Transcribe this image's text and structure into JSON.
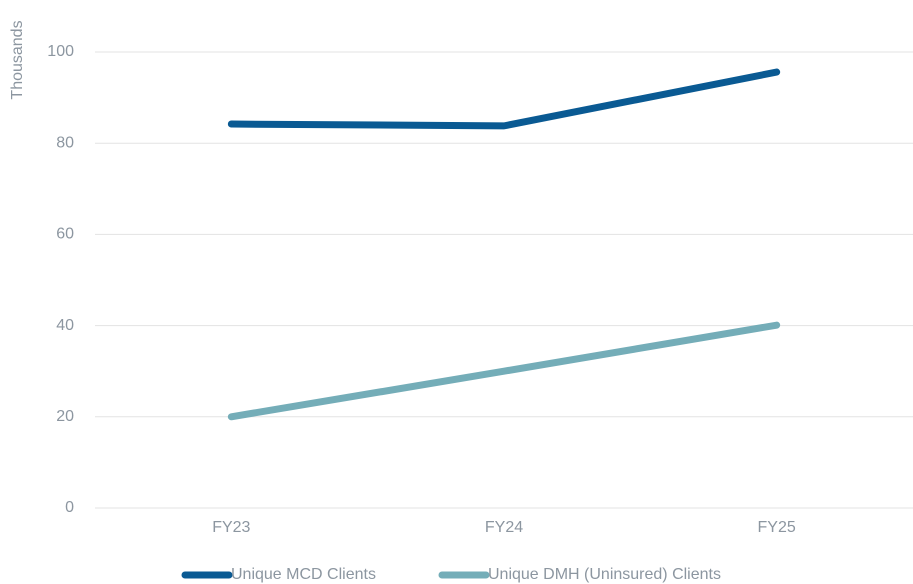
{
  "chart_data": {
    "type": "line",
    "y_axis_label": "Thousands",
    "categories": [
      "FY23",
      "FY24",
      "FY25"
    ],
    "series": [
      {
        "name": "Unique MCD Clients",
        "color": "#0a5a93",
        "values": [
          84.2,
          83.8,
          95.6
        ]
      },
      {
        "name": "Unique DMH (Uninsured) Clients",
        "color": "#74adb8",
        "values": [
          20.0,
          30.0,
          40.1
        ]
      }
    ],
    "ylim": [
      0,
      110
    ],
    "yticks": [
      0,
      20,
      40,
      60,
      80,
      100
    ],
    "grid": true,
    "legend": "bottom"
  }
}
